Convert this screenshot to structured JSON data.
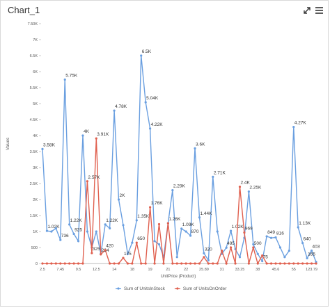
{
  "chart_data": {
    "type": "line",
    "title": "Chart_1",
    "y_label": "Values",
    "x_label": "UnitPrice (Product)",
    "categories": [
      "2.5",
      null,
      null,
      null,
      "7.45",
      null,
      null,
      null,
      "9.5",
      null,
      null,
      null,
      "12.5",
      null,
      null,
      null,
      "14",
      null,
      null,
      null,
      "18",
      null,
      null,
      null,
      "19",
      null,
      null,
      null,
      "21",
      null,
      null,
      null,
      "22",
      null,
      null,
      null,
      "25.89",
      null,
      null,
      null,
      "31",
      null,
      null,
      null,
      "33.25",
      null,
      null,
      null,
      "38",
      null,
      null,
      null,
      "45.6",
      null,
      null,
      null,
      "55",
      null,
      null,
      null,
      "123.79",
      null
    ],
    "series": [
      {
        "name": "Sum of UnitsInStock",
        "color": "#6a9fe0",
        "values": [
          3580,
          1020,
          1000,
          1100,
          736,
          5750,
          1220,
          925,
          700,
          4000,
          1000,
          500,
          1000,
          300,
          1220,
          1100,
          4780,
          2000,
          1200,
          300,
          650,
          1350,
          6500,
          5040,
          4220,
          700,
          600,
          200,
          1260,
          2290,
          200,
          1090,
          1000,
          870,
          3600,
          1440,
          320,
          100,
          2710,
          1000,
          300,
          495,
          1020,
          450,
          200,
          800,
          2250,
          600,
          300,
          75,
          849,
          800,
          816,
          500,
          200,
          400,
          4270,
          1130,
          640,
          165,
          403,
          50
        ],
        "value_labels": [
          "3.58K",
          "1.02K",
          null,
          null,
          "736",
          "5.75K",
          "1.22K",
          "925",
          null,
          "4K",
          null,
          null,
          null,
          null,
          "1.22K",
          null,
          "4.78K",
          "2K",
          null,
          null,
          null,
          "1.35K",
          "6.5K",
          "5.04K",
          "4.22K",
          null,
          null,
          null,
          null,
          "2.29K",
          null,
          "1.09K",
          null,
          "870",
          "3.6K",
          "1.44K",
          "320",
          null,
          "2.71K",
          null,
          null,
          "495",
          "1.02K",
          null,
          null,
          null,
          "2.25K",
          null,
          null,
          "75",
          "849",
          null,
          "816",
          null,
          null,
          null,
          "4.27K",
          "1.13K",
          "640",
          "165",
          "403",
          null
        ]
      },
      {
        "name": "Sum of UnitsOnOrder",
        "color": "#e0604f",
        "values": [
          0,
          0,
          0,
          0,
          0,
          0,
          0,
          0,
          0,
          0,
          2570,
          325,
          3910,
          284,
          420,
          0,
          0,
          0,
          175,
          0,
          0,
          650,
          0,
          0,
          1760,
          0,
          1230,
          0,
          1260,
          0,
          0,
          0,
          0,
          0,
          0,
          0,
          200,
          0,
          0,
          0,
          400,
          0,
          500,
          0,
          2400,
          969,
          0,
          500,
          0,
          250,
          0,
          0,
          0,
          0,
          0,
          0,
          0,
          0,
          0,
          0,
          0,
          0
        ],
        "value_labels": [
          null,
          null,
          null,
          null,
          null,
          null,
          null,
          null,
          null,
          null,
          "2.57K",
          "325",
          "3.91K",
          "284",
          "420",
          null,
          null,
          null,
          "175",
          null,
          null,
          "650",
          null,
          null,
          "1.76K",
          null,
          null,
          null,
          "1.26K",
          null,
          null,
          null,
          null,
          null,
          null,
          null,
          null,
          null,
          null,
          null,
          null,
          null,
          null,
          null,
          "2.4K",
          "969",
          null,
          "500",
          null,
          null,
          null,
          null,
          null,
          null,
          null,
          null,
          null,
          null,
          null,
          null,
          null,
          null
        ]
      }
    ],
    "ylim": [
      0,
      7500
    ],
    "yticks": [
      0,
      500,
      {
        "value": 1000,
        "label": "1K"
      },
      {
        "value": 1500,
        "label": "1.5K"
      },
      {
        "value": 2000,
        "label": "2K"
      },
      {
        "value": 2500,
        "label": "2.5K"
      },
      {
        "value": 3000,
        "label": "3K"
      },
      {
        "value": 3500,
        "label": "3.5K"
      },
      {
        "value": 4000,
        "label": "4K"
      },
      {
        "value": 4500,
        "label": "4.5K"
      },
      {
        "value": 5000,
        "label": "5K"
      },
      {
        "value": 5500,
        "label": "5.5K"
      },
      {
        "value": 6000,
        "label": "6K"
      },
      {
        "value": 6500,
        "label": "6.5K"
      },
      {
        "value": 7000,
        "label": "7K"
      },
      {
        "value": 7500,
        "label": "7.50K"
      }
    ],
    "grid": false
  }
}
